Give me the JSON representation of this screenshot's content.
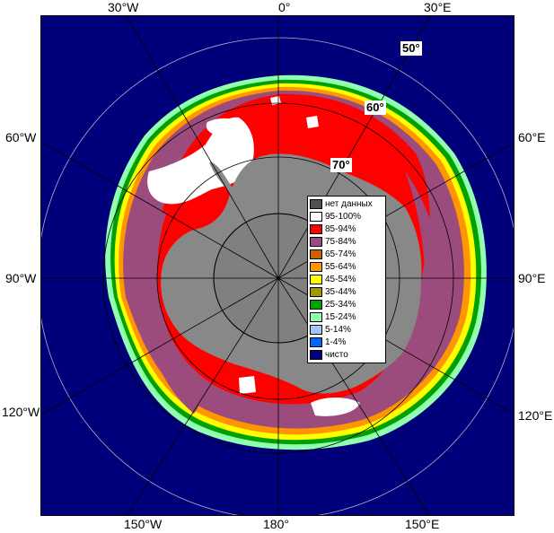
{
  "map": {
    "lon_labels": {
      "w30": "30°W",
      "zero": "0°",
      "e30": "30°E",
      "w60": "60°W",
      "e60": "60°E",
      "w90": "90°W",
      "e90": "90°E",
      "w120": "120°W",
      "e120": "120°E",
      "w150": "150°W",
      "lon180": "180°",
      "e150": "150°E"
    },
    "lat_labels": {
      "lat50": "50°",
      "lat60": "60°",
      "lat70": "70°"
    },
    "colors": {
      "ocean": "#00007a",
      "land": "#888888",
      "ice_95_100": "#ffffff",
      "ice_85_94": "#ff0000",
      "ice_75_84": "#9c4c7c",
      "ice_65_74": "#c86400",
      "ice_55_64": "#ff9600",
      "ice_45_54": "#ffff00",
      "ice_35_44": "#9a9a00",
      "ice_25_34": "#00a000",
      "ice_15_24": "#90ffb0",
      "grid": "#9090b0"
    }
  },
  "legend": {
    "items": [
      {
        "label": "нет данных",
        "color": "#505050"
      },
      {
        "label": "95-100%",
        "color": "#ffffff"
      },
      {
        "label": "85-94%",
        "color": "#ff0000"
      },
      {
        "label": "75-84%",
        "color": "#9c4c7c"
      },
      {
        "label": "65-74%",
        "color": "#c86400"
      },
      {
        "label": "55-64%",
        "color": "#ff9600"
      },
      {
        "label": "45-54%",
        "color": "#ffff00"
      },
      {
        "label": "35-44%",
        "color": "#9a9a00"
      },
      {
        "label": "25-34%",
        "color": "#00a000"
      },
      {
        "label": "15-24%",
        "color": "#90ffb0"
      },
      {
        "label": "5-14%",
        "color": "#a0c8ff"
      },
      {
        "label": "1-4%",
        "color": "#0064ff"
      },
      {
        "label": "чисто",
        "color": "#00007a"
      }
    ]
  }
}
